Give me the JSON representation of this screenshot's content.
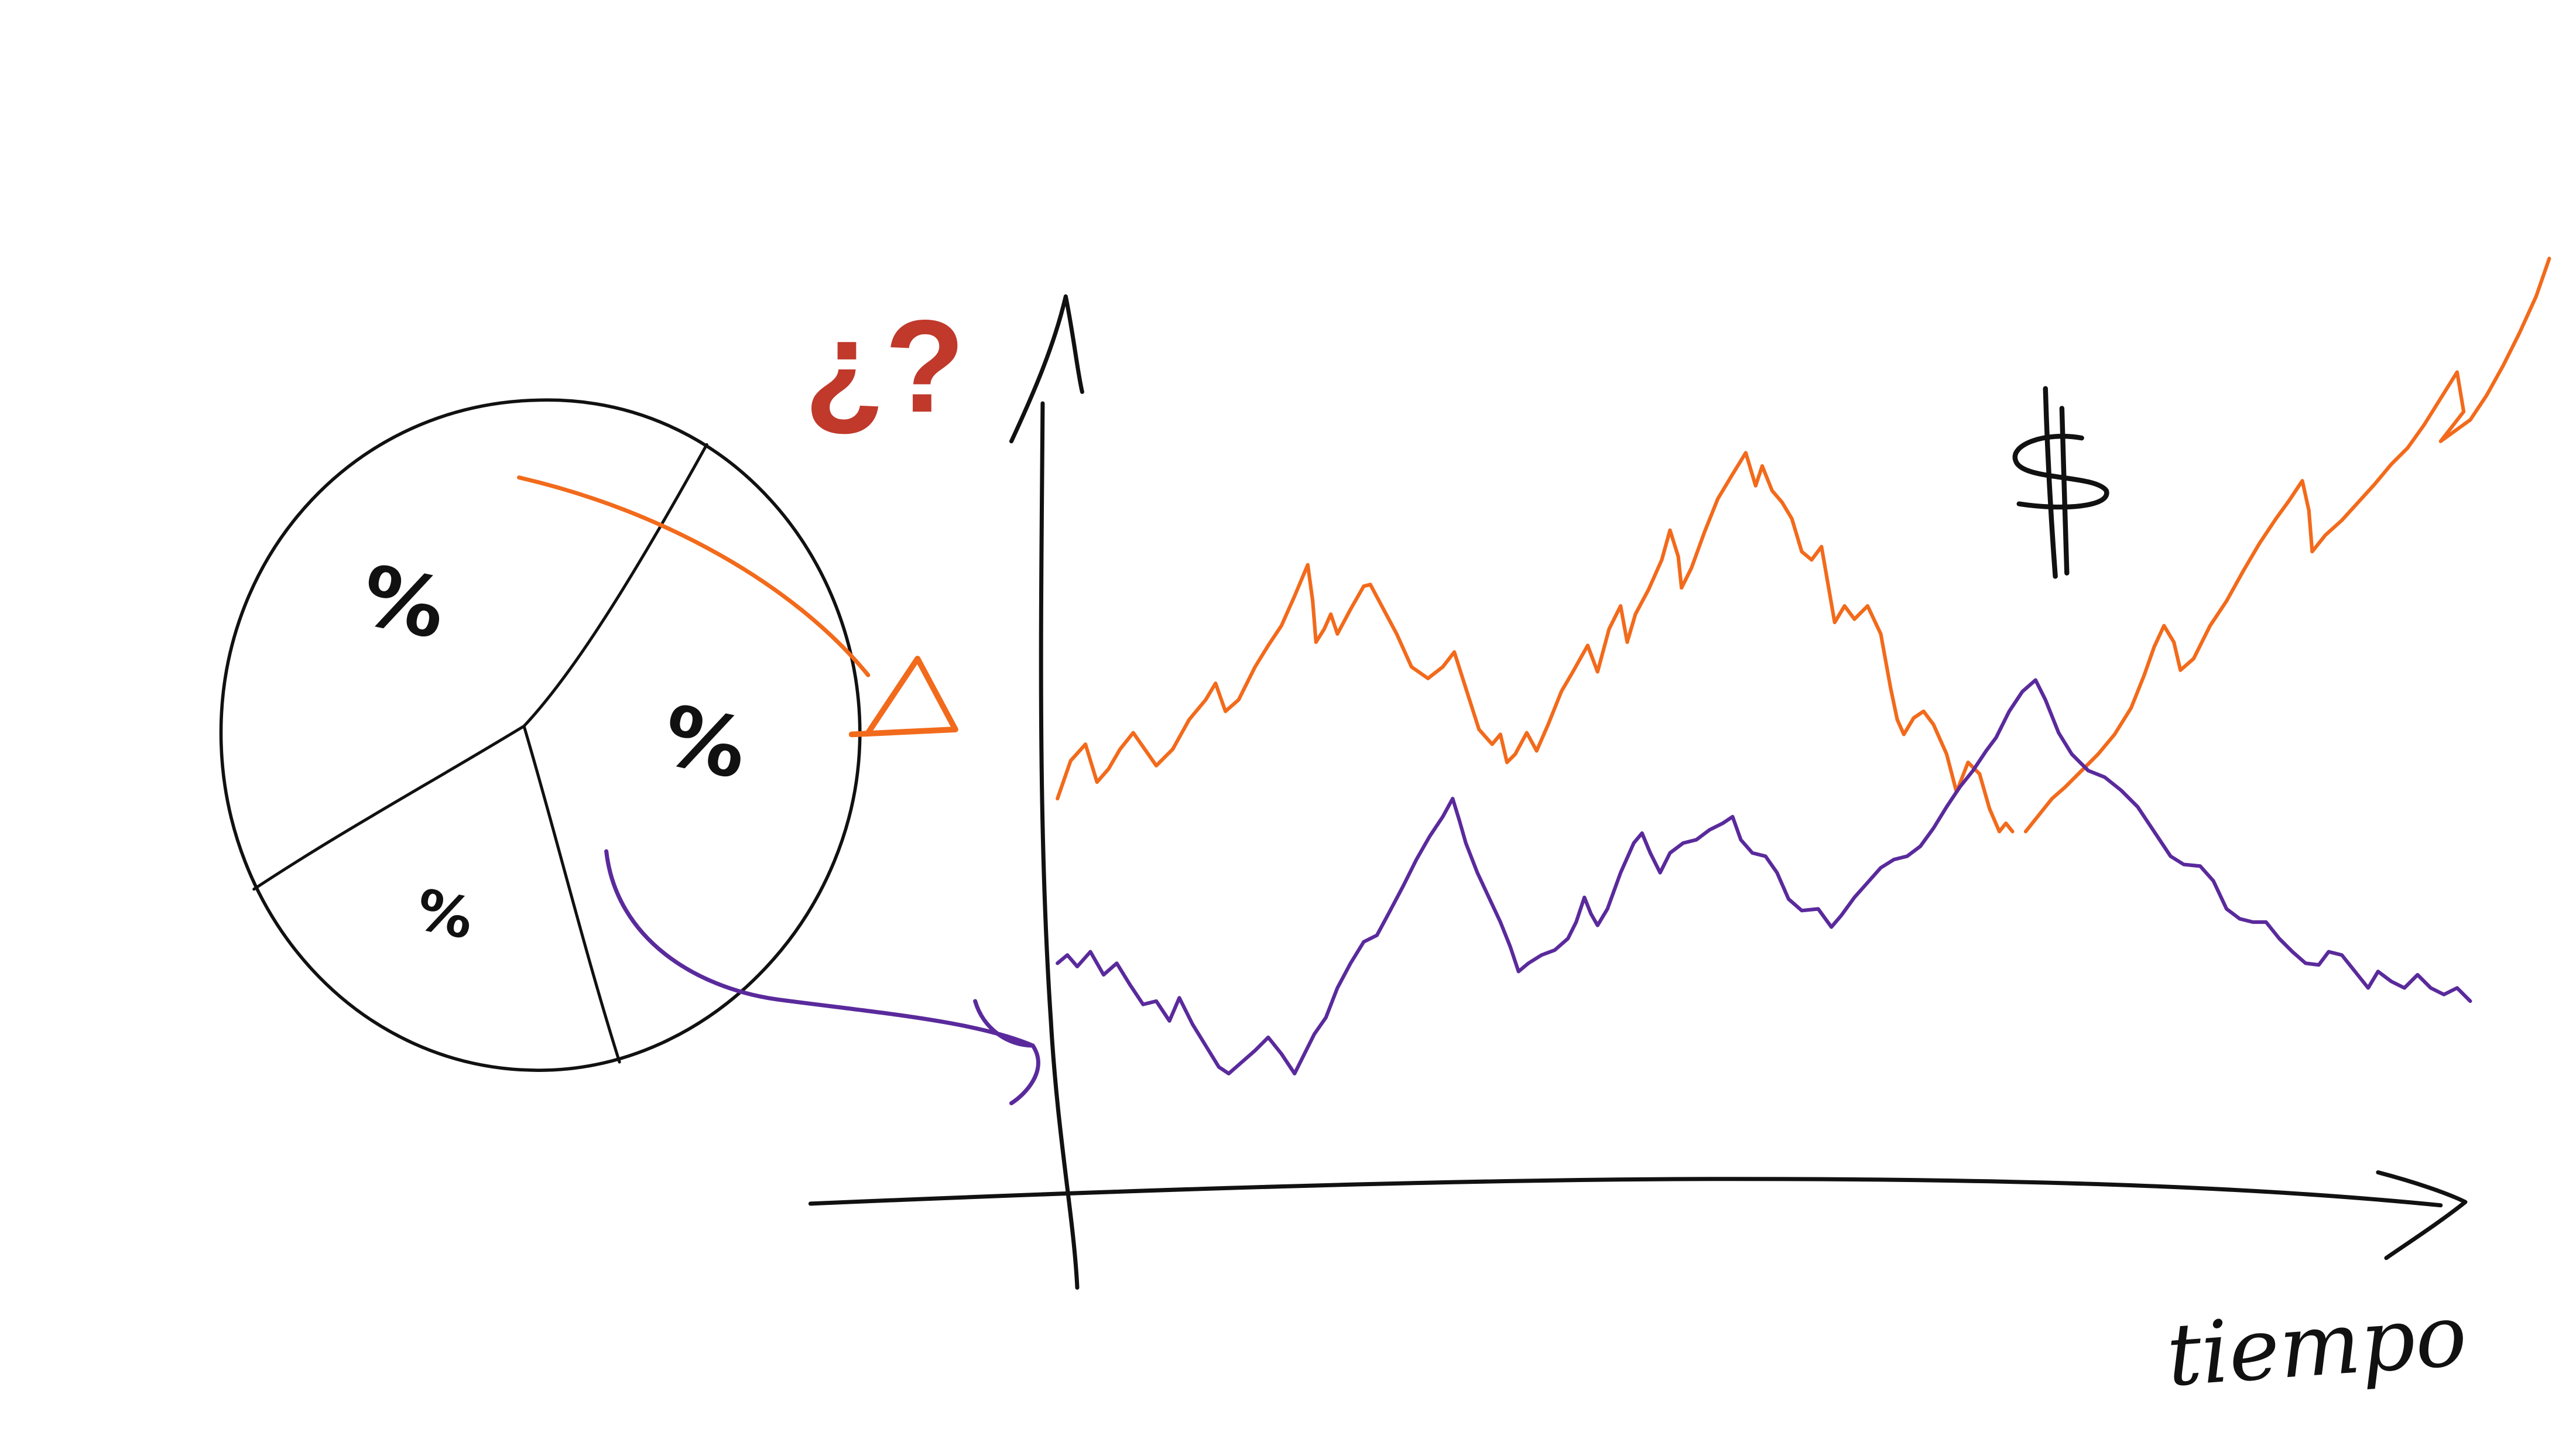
{
  "pie": {
    "slice_labels": [
      "%",
      "%",
      "%"
    ]
  },
  "question_mark": "¿?",
  "currency_symbol": "$",
  "delta_symbol": "Δ",
  "x_axis_label": "tiempo",
  "colors": {
    "ink": "#111111",
    "orange": "#f26a1b",
    "purple": "#5a2a9c",
    "question": "#c0392b"
  }
}
